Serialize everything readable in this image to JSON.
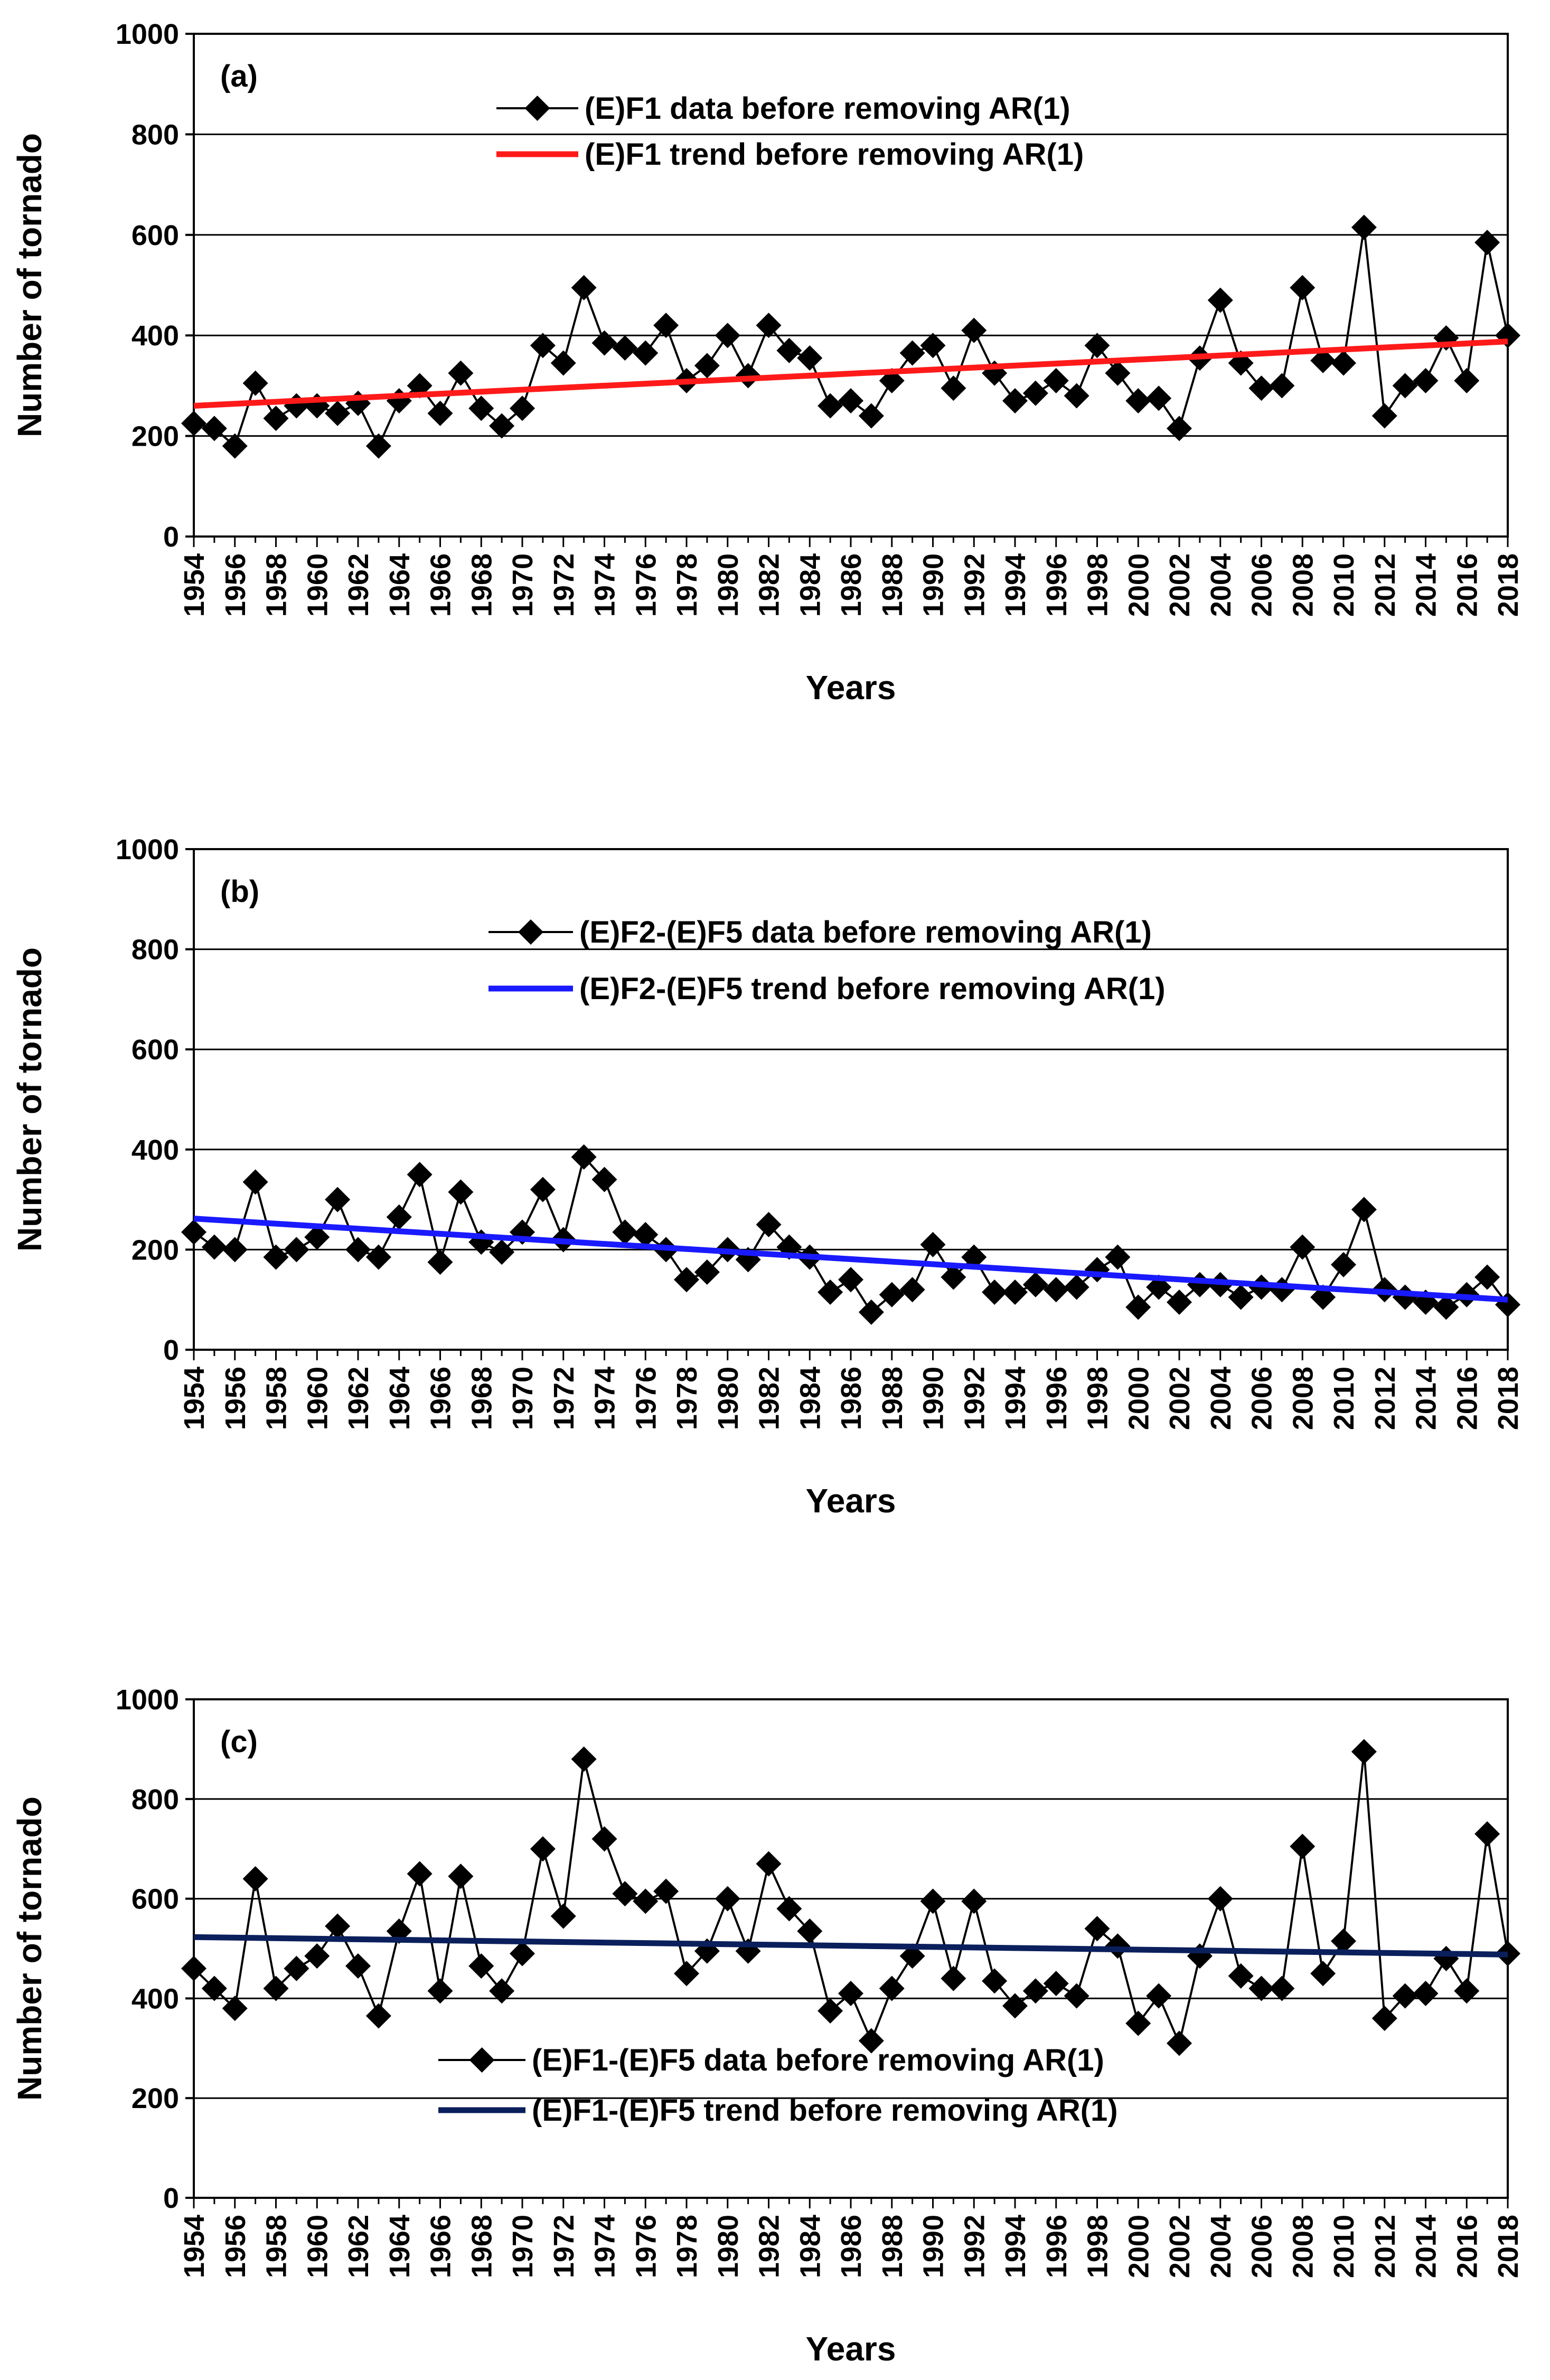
{
  "figure": {
    "colors": {
      "grid": "#000000",
      "data_line": "#000000",
      "marker": "#000000"
    }
  },
  "chart_data": [
    {
      "type": "line",
      "panel_label": "(a)",
      "xlabel": "Years",
      "ylabel": "Number of tornado",
      "ylim": [
        0,
        1000
      ],
      "yticks": [
        0,
        200,
        400,
        600,
        800,
        1000
      ],
      "xlim": [
        1954,
        2018
      ],
      "xticks": [
        1954,
        1956,
        1958,
        1960,
        1962,
        1964,
        1966,
        1968,
        1970,
        1972,
        1974,
        1976,
        1978,
        1980,
        1982,
        1984,
        1986,
        1988,
        1990,
        1992,
        1994,
        1996,
        1998,
        2000,
        2002,
        2004,
        2006,
        2008,
        2010,
        2012,
        2014,
        2016,
        2018
      ],
      "grid": true,
      "legend_position": "top-center",
      "x": [
        1954,
        1955,
        1956,
        1957,
        1958,
        1959,
        1960,
        1961,
        1962,
        1963,
        1964,
        1965,
        1966,
        1967,
        1968,
        1969,
        1970,
        1971,
        1972,
        1973,
        1974,
        1975,
        1976,
        1977,
        1978,
        1979,
        1980,
        1981,
        1982,
        1983,
        1984,
        1985,
        1986,
        1987,
        1988,
        1989,
        1990,
        1991,
        1992,
        1993,
        1994,
        1995,
        1996,
        1997,
        1998,
        1999,
        2000,
        2001,
        2002,
        2003,
        2004,
        2005,
        2006,
        2007,
        2008,
        2009,
        2010,
        2011,
        2012,
        2013,
        2014,
        2015,
        2016,
        2017,
        2018
      ],
      "series": [
        {
          "name": "(E)F1 data before removing AR(1)",
          "kind": "data",
          "color": "#000000",
          "values": [
            225,
            215,
            180,
            305,
            235,
            260,
            260,
            245,
            265,
            180,
            270,
            300,
            245,
            325,
            255,
            220,
            255,
            380,
            345,
            495,
            385,
            375,
            365,
            420,
            310,
            340,
            400,
            320,
            420,
            370,
            355,
            260,
            270,
            240,
            310,
            365,
            380,
            295,
            410,
            325,
            270,
            285,
            310,
            280,
            380,
            325,
            270,
            275,
            215,
            355,
            470,
            345,
            295,
            300,
            495,
            350,
            345,
            615,
            240,
            300,
            310,
            395,
            310,
            585,
            400
          ]
        },
        {
          "name": "(E)F1 trend before removing AR(1)",
          "kind": "trend",
          "color": "#ff1a1a",
          "start": [
            1954,
            260
          ],
          "end": [
            2018,
            388
          ]
        }
      ]
    },
    {
      "type": "line",
      "panel_label": "(b)",
      "xlabel": "Years",
      "ylabel": "Number of tornado",
      "ylim": [
        0,
        1000
      ],
      "yticks": [
        0,
        200,
        400,
        600,
        800,
        1000
      ],
      "xlim": [
        1954,
        2018
      ],
      "xticks": [
        1954,
        1956,
        1958,
        1960,
        1962,
        1964,
        1966,
        1968,
        1970,
        1972,
        1974,
        1976,
        1978,
        1980,
        1982,
        1984,
        1986,
        1988,
        1990,
        1992,
        1994,
        1996,
        1998,
        2000,
        2002,
        2004,
        2006,
        2008,
        2010,
        2012,
        2014,
        2016,
        2018
      ],
      "grid": true,
      "legend_position": "top-center",
      "x": [
        1954,
        1955,
        1956,
        1957,
        1958,
        1959,
        1960,
        1961,
        1962,
        1963,
        1964,
        1965,
        1966,
        1967,
        1968,
        1969,
        1970,
        1971,
        1972,
        1973,
        1974,
        1975,
        1976,
        1977,
        1978,
        1979,
        1980,
        1981,
        1982,
        1983,
        1984,
        1985,
        1986,
        1987,
        1988,
        1989,
        1990,
        1991,
        1992,
        1993,
        1994,
        1995,
        1996,
        1997,
        1998,
        1999,
        2000,
        2001,
        2002,
        2003,
        2004,
        2005,
        2006,
        2007,
        2008,
        2009,
        2010,
        2011,
        2012,
        2013,
        2014,
        2015,
        2016,
        2017,
        2018
      ],
      "series": [
        {
          "name": "(E)F2-(E)F5 data before removing AR(1)",
          "kind": "data",
          "color": "#000000",
          "values": [
            235,
            205,
            200,
            335,
            185,
            200,
            225,
            300,
            200,
            185,
            265,
            350,
            175,
            315,
            215,
            195,
            235,
            320,
            220,
            385,
            340,
            235,
            230,
            200,
            140,
            155,
            200,
            180,
            250,
            205,
            185,
            115,
            140,
            75,
            110,
            120,
            210,
            145,
            185,
            115,
            115,
            130,
            120,
            125,
            160,
            185,
            85,
            125,
            95,
            130,
            130,
            105,
            125,
            120,
            205,
            105,
            170,
            280,
            120,
            105,
            95,
            85,
            110,
            145,
            90
          ]
        },
        {
          "name": "(E)F2-(E)F5 trend before removing AR(1)",
          "kind": "trend",
          "color": "#1a1aff",
          "start": [
            1954,
            262
          ],
          "end": [
            2018,
            100
          ]
        }
      ]
    },
    {
      "type": "line",
      "panel_label": "(c)",
      "xlabel": "Years",
      "ylabel": "Number of tornado",
      "ylim": [
        0,
        1000
      ],
      "yticks": [
        0,
        200,
        400,
        600,
        800,
        1000
      ],
      "xlim": [
        1954,
        2018
      ],
      "xticks": [
        1954,
        1956,
        1958,
        1960,
        1962,
        1964,
        1966,
        1968,
        1970,
        1972,
        1974,
        1976,
        1978,
        1980,
        1982,
        1984,
        1986,
        1988,
        1990,
        1992,
        1994,
        1996,
        1998,
        2000,
        2002,
        2004,
        2006,
        2008,
        2010,
        2012,
        2014,
        2016,
        2018
      ],
      "grid": true,
      "legend_position": "bottom-center",
      "x": [
        1954,
        1955,
        1956,
        1957,
        1958,
        1959,
        1960,
        1961,
        1962,
        1963,
        1964,
        1965,
        1966,
        1967,
        1968,
        1969,
        1970,
        1971,
        1972,
        1973,
        1974,
        1975,
        1976,
        1977,
        1978,
        1979,
        1980,
        1981,
        1982,
        1983,
        1984,
        1985,
        1986,
        1987,
        1988,
        1989,
        1990,
        1991,
        1992,
        1993,
        1994,
        1995,
        1996,
        1997,
        1998,
        1999,
        2000,
        2001,
        2002,
        2003,
        2004,
        2005,
        2006,
        2007,
        2008,
        2009,
        2010,
        2011,
        2012,
        2013,
        2014,
        2015,
        2016,
        2017,
        2018
      ],
      "series": [
        {
          "name": "(E)F1-(E)F5 data before removing AR(1)",
          "kind": "data",
          "color": "#000000",
          "values": [
            460,
            420,
            380,
            640,
            420,
            460,
            485,
            545,
            465,
            365,
            535,
            650,
            415,
            645,
            465,
            415,
            490,
            700,
            565,
            880,
            720,
            610,
            595,
            615,
            450,
            495,
            600,
            495,
            670,
            580,
            535,
            375,
            410,
            315,
            420,
            485,
            595,
            440,
            595,
            435,
            385,
            415,
            430,
            405,
            540,
            505,
            350,
            405,
            310,
            485,
            600,
            445,
            420,
            420,
            705,
            450,
            515,
            895,
            360,
            405,
            410,
            480,
            415,
            730,
            490
          ]
        },
        {
          "name": "(E)F1-(E)F5 trend before removing AR(1)",
          "kind": "trend",
          "color": "#0a1f5c",
          "start": [
            1954,
            523
          ],
          "end": [
            2018,
            488
          ]
        }
      ]
    }
  ]
}
